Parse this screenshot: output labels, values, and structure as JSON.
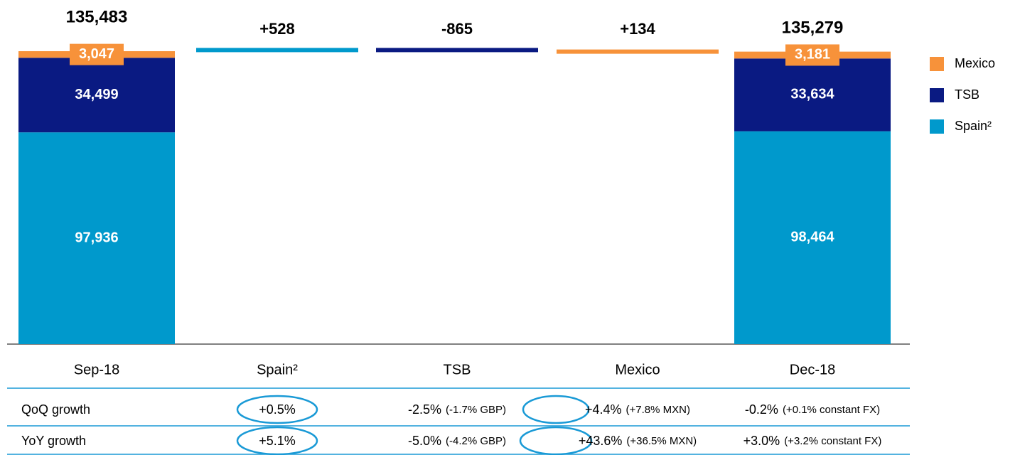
{
  "chart_data": {
    "type": "waterfall",
    "categories": [
      "Sep-18",
      "Spain²",
      "TSB",
      "Mexico",
      "Dec-18"
    ],
    "series": [
      {
        "name": "Spain²",
        "color": "#0099cc",
        "values": [
          97936,
          528,
          null,
          null,
          98464
        ],
        "value_labels": [
          "97,936",
          "+528",
          null,
          null,
          "98,464"
        ]
      },
      {
        "name": "TSB",
        "color": "#0a1a82",
        "values": [
          34499,
          null,
          -865,
          null,
          33634
        ],
        "value_labels": [
          "34,499",
          null,
          "-865",
          null,
          "33,634"
        ]
      },
      {
        "name": "Mexico",
        "color": "#f7923a",
        "values": [
          3047,
          null,
          null,
          134,
          3181
        ],
        "value_labels": [
          "3,047",
          null,
          null,
          "+134",
          "3,181"
        ]
      }
    ],
    "totals": {
      "values": [
        135483,
        null,
        null,
        null,
        135279
      ],
      "value_labels": [
        "135,483",
        null,
        null,
        null,
        "135,279"
      ]
    },
    "legend": "right"
  },
  "table": {
    "rows": [
      {
        "label": "QoQ growth",
        "cells": [
          {
            "value": "+0.5%"
          },
          {
            "value": "-2.5%",
            "note": "(-1.7% GBP)"
          },
          {
            "value": "+4.4%",
            "note": "(+7.8% MXN)"
          },
          {
            "value": "-0.2%",
            "note": "(+0.1% constant FX)"
          }
        ]
      },
      {
        "label": "YoY growth",
        "cells": [
          {
            "value": "+5.1%"
          },
          {
            "value": "-5.0%",
            "note": "(-4.2% GBP)"
          },
          {
            "value": "+43.6%",
            "note": "(+36.5% MXN)"
          },
          {
            "value": "+3.0%",
            "note": "(+3.2% constant FX)"
          }
        ]
      }
    ]
  }
}
